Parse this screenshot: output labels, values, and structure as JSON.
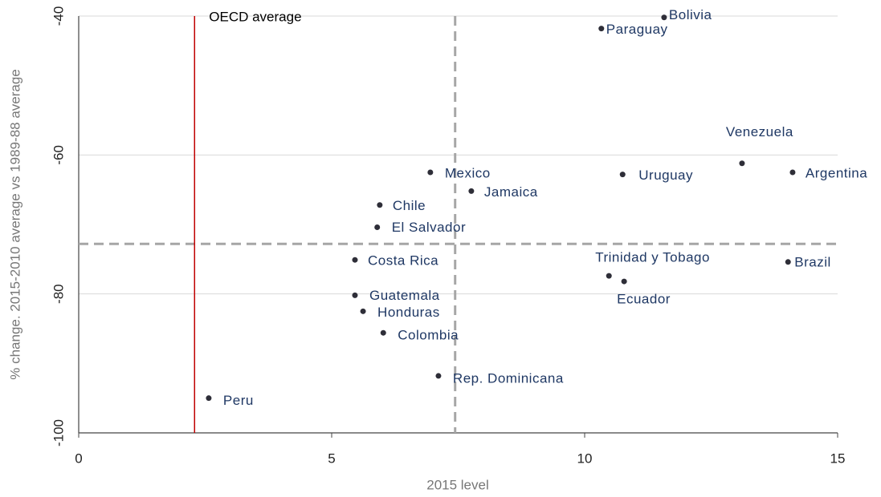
{
  "chart_data": {
    "type": "scatter",
    "x_label": "2015 level",
    "y_label": "% change. 2015-2010 average vs 1989-88 average",
    "xlim": [
      0,
      15
    ],
    "xticks": [
      0,
      5,
      10,
      15
    ],
    "ylim": [
      -100,
      -40
    ],
    "yticks": [
      -100,
      -80,
      -60,
      -40
    ],
    "grid": true,
    "color": "#2e2e38",
    "labels": [
      "Bolivia",
      "Paraguay",
      "Venezuela",
      "Argentina",
      "Uruguay",
      "Mexico",
      "Jamaica",
      "Chile",
      "El Salvador",
      "Costa Rica",
      "Brazil",
      "Trinidad y Tobago",
      "Ecuador",
      "Guatemala",
      "Honduras",
      "Colombia",
      "Rep. Dominicana",
      "Peru"
    ],
    "x": [
      11.57,
      10.33,
      13.11,
      14.11,
      10.75,
      6.95,
      7.76,
      5.95,
      5.9,
      5.46,
      14.02,
      10.48,
      10.78,
      5.46,
      5.62,
      6.02,
      7.11,
      2.57
    ],
    "values": [
      -40.2,
      -41.8,
      -61.2,
      -62.5,
      -62.8,
      -62.5,
      -65.2,
      -67.2,
      -70.4,
      -75.1,
      -75.4,
      -77.4,
      -78.2,
      -80.2,
      -82.5,
      -85.6,
      -91.8,
      -95.0
    ],
    "vlines": [
      {
        "label": "OECD average",
        "x": 2.29,
        "color": "#c00000",
        "dashed": false
      },
      {
        "x": 7.44,
        "color": "#a6a6a6",
        "dashed": true
      }
    ],
    "hlines": [
      {
        "y": -72.8,
        "color": "#a6a6a6",
        "dashed": true
      }
    ]
  }
}
